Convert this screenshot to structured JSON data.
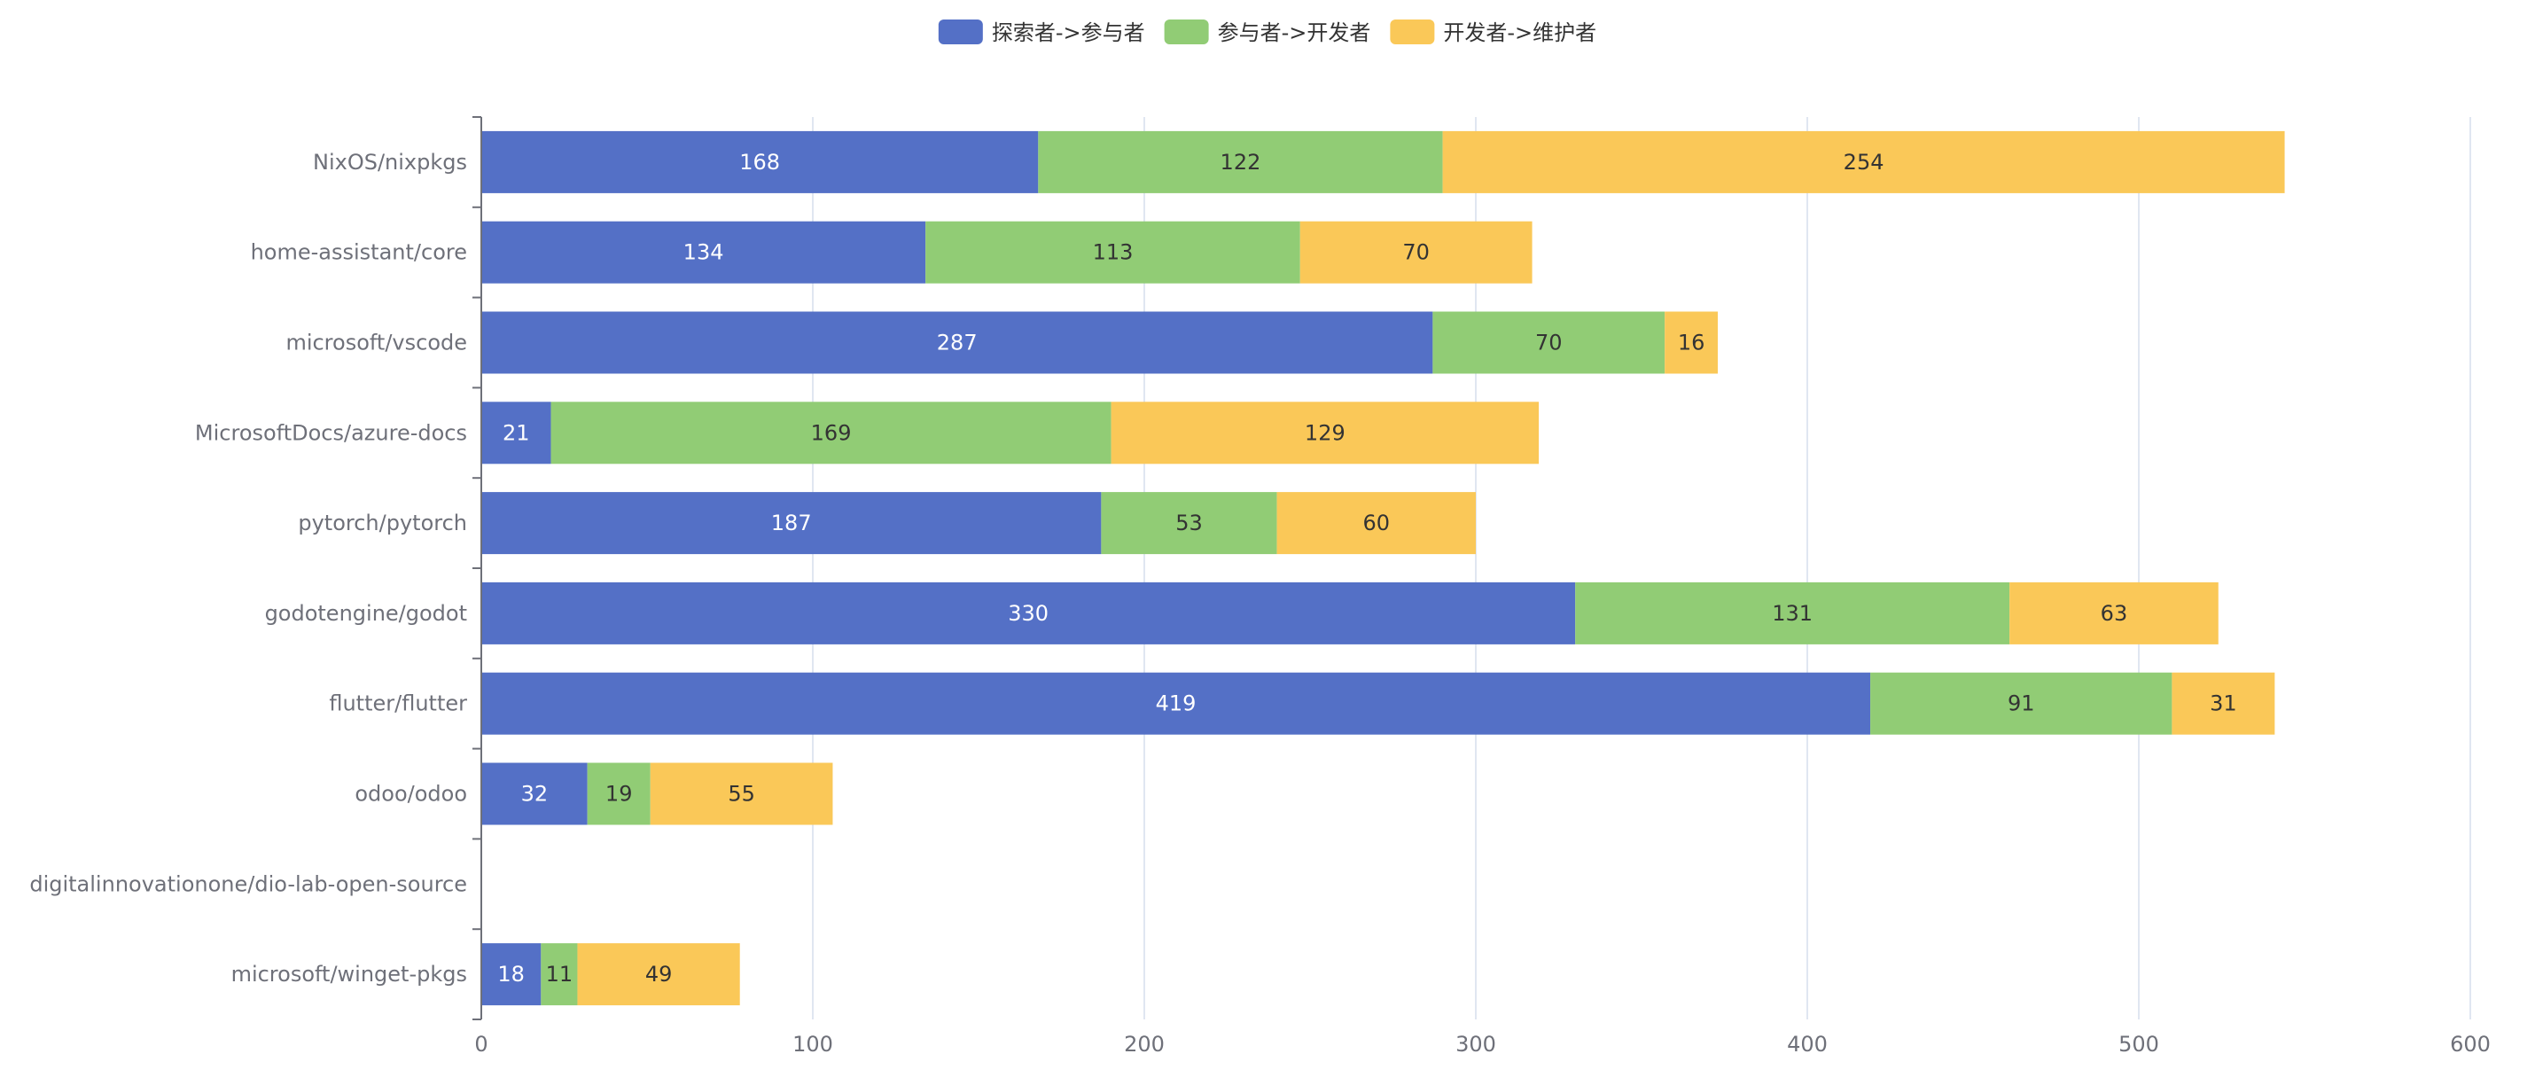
{
  "chart_data": {
    "type": "bar",
    "orientation": "horizontal",
    "stacked": true,
    "categories": [
      "NixOS/nixpkgs",
      "home-assistant/core",
      "microsoft/vscode",
      "MicrosoftDocs/azure-docs",
      "pytorch/pytorch",
      "godotengine/godot",
      "flutter/flutter",
      "odoo/odoo",
      "digitalinnovationone/dio-lab-open-source",
      "microsoft/winget-pkgs"
    ],
    "series": [
      {
        "name": "探索者->参与者",
        "color": "#5470c6",
        "label_color": "#ffffff",
        "values": [
          168,
          134,
          287,
          21,
          187,
          330,
          419,
          32,
          0,
          18
        ]
      },
      {
        "name": "参与者->开发者",
        "color": "#91cc75",
        "label_color": "#333333",
        "values": [
          122,
          113,
          70,
          169,
          53,
          131,
          91,
          19,
          0,
          11
        ]
      },
      {
        "name": "开发者->维护者",
        "color": "#fac858",
        "label_color": "#333333",
        "values": [
          254,
          70,
          16,
          129,
          60,
          63,
          31,
          55,
          0,
          49
        ]
      }
    ],
    "x_ticks": [
      "0",
      "100",
      "200",
      "300",
      "400",
      "500",
      "600"
    ],
    "xlim": [
      0,
      600
    ],
    "grid": true,
    "legend_position": "top-center"
  }
}
